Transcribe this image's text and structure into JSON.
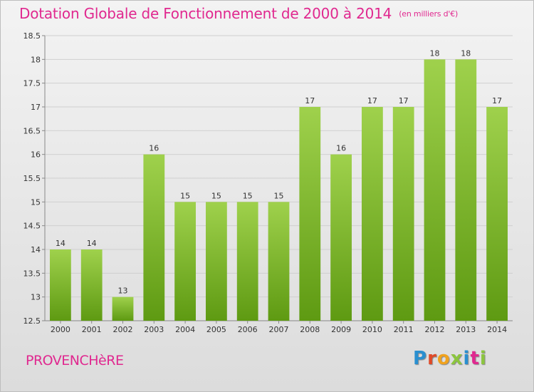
{
  "title": "Dotation Globale de Fonctionnement de 2000 à 2014",
  "unit_note": "(en milliers d'€)",
  "commune": "PROVENCHèRE",
  "logo_text": "Proxiti",
  "colors": {
    "title": "#e0288f",
    "bar_top": "#9fd14c",
    "bar_bottom": "#5e9a12",
    "grid": "#d0d0d0"
  },
  "chart_data": {
    "type": "bar",
    "categories": [
      "2000",
      "2001",
      "2002",
      "2003",
      "2004",
      "2005",
      "2006",
      "2007",
      "2008",
      "2009",
      "2010",
      "2011",
      "2012",
      "2013",
      "2014"
    ],
    "values": [
      14,
      14,
      13,
      16,
      15,
      15,
      15,
      15,
      17,
      16,
      17,
      17,
      18,
      18,
      17
    ],
    "value_labels": [
      "14",
      "14",
      "13",
      "16",
      "15",
      "15",
      "15",
      "15",
      "17",
      "16",
      "17",
      "17",
      "18",
      "18",
      "17"
    ],
    "ylim": [
      12.5,
      18.5
    ],
    "yticks": [
      "12.5",
      "13",
      "13.5",
      "14",
      "14.5",
      "15",
      "15.5",
      "16",
      "16.5",
      "17",
      "17.5",
      "18",
      "18.5"
    ],
    "grid": true,
    "xlabel": "",
    "ylabel": ""
  }
}
